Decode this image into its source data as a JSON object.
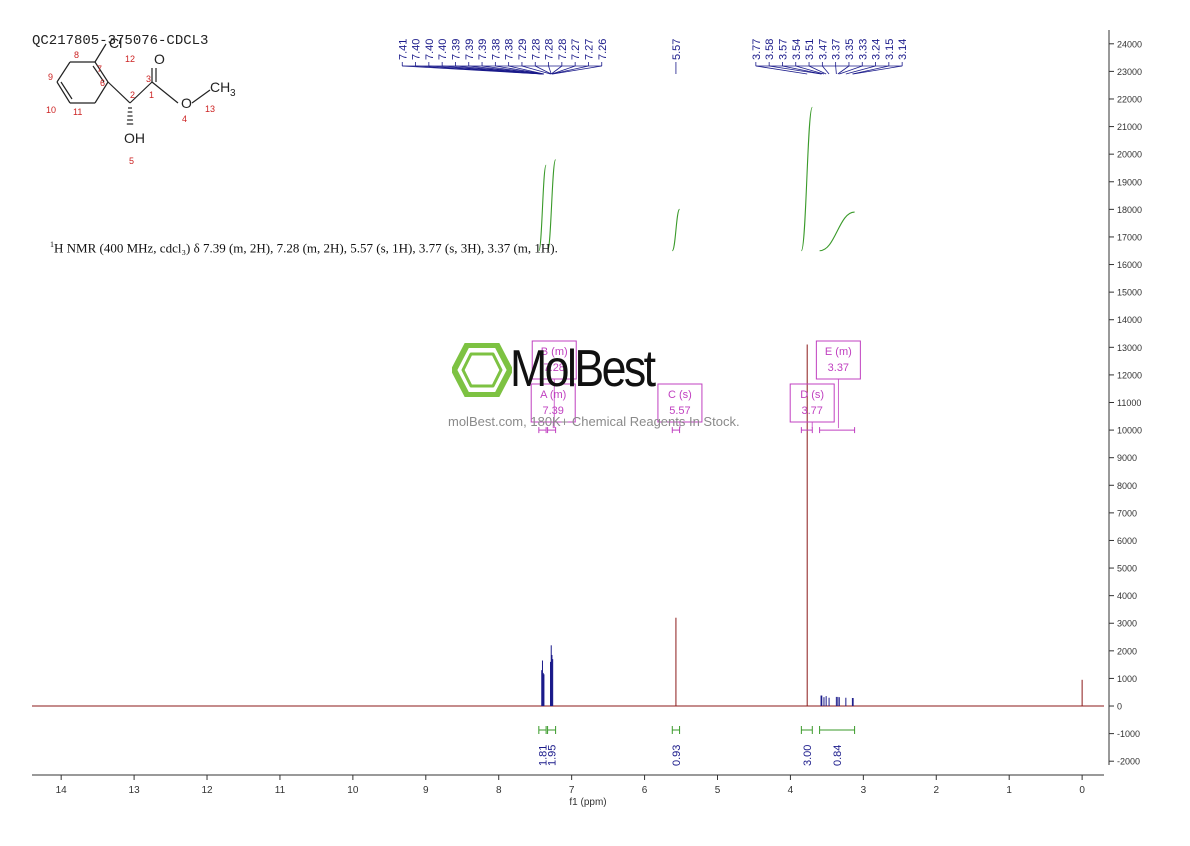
{
  "sample_id": "QC217805-375076-CDCL3",
  "nmr_text": "H NMR (400 MHz, cdcl₃) δ 7.39 (m, 2H), 7.28 (m, 2H), 5.57 (s, 1H), 3.77 (s, 3H), 3.37 (m, 1H).",
  "nmr_superscript": "1",
  "watermark": {
    "logo": "MolBest",
    "tagline": "molBest.com, 180K+ Chemical Reagents In Stock.",
    "colors": {
      "logo_green": "#7dc242",
      "logo_text": "#111111"
    }
  },
  "molecule": {
    "atoms": {
      "cl": "Cl",
      "o_carbonyl": "O",
      "o_ester": "O",
      "ch3": "CH",
      "ch3_sub": "3",
      "oh": "OH"
    },
    "numbers": [
      "1",
      "2",
      "3",
      "4",
      "5",
      "6",
      "7",
      "8",
      "9",
      "10",
      "11",
      "12",
      "13"
    ]
  },
  "chart_data": {
    "type": "line",
    "xlabel": "f1 (ppm)",
    "xlim": [
      14.4,
      -0.3
    ],
    "ylim": [
      -2500,
      24500
    ],
    "x_ticks": [
      14,
      13,
      12,
      11,
      10,
      9,
      8,
      7,
      6,
      5,
      4,
      3,
      2,
      1,
      0
    ],
    "y_ticks": [
      24000,
      23000,
      22000,
      21000,
      20000,
      19000,
      18000,
      17000,
      16000,
      15000,
      14000,
      13000,
      12000,
      11000,
      10000,
      9000,
      8000,
      7000,
      6000,
      5000,
      4000,
      3000,
      2000,
      1000,
      0,
      -1000,
      -2000
    ],
    "peaks": [
      {
        "ppm": 7.41,
        "height": 1300
      },
      {
        "ppm": 7.4,
        "height": 1650
      },
      {
        "ppm": 7.39,
        "height": 1200
      },
      {
        "ppm": 7.38,
        "height": 1150
      },
      {
        "ppm": 7.29,
        "height": 1600
      },
      {
        "ppm": 7.28,
        "height": 2200
      },
      {
        "ppm": 7.27,
        "height": 1850
      },
      {
        "ppm": 7.26,
        "height": 1700
      },
      {
        "ppm": 5.57,
        "height": 3200
      },
      {
        "ppm": 3.77,
        "height": 13100
      },
      {
        "ppm": 3.58,
        "height": 380
      },
      {
        "ppm": 3.57,
        "height": 380
      },
      {
        "ppm": 3.54,
        "height": 320
      },
      {
        "ppm": 3.51,
        "height": 360
      },
      {
        "ppm": 3.47,
        "height": 300
      },
      {
        "ppm": 3.37,
        "height": 330
      },
      {
        "ppm": 3.35,
        "height": 330
      },
      {
        "ppm": 3.33,
        "height": 320
      },
      {
        "ppm": 3.24,
        "height": 300
      },
      {
        "ppm": 3.15,
        "height": 290
      },
      {
        "ppm": 3.14,
        "height": 290
      },
      {
        "ppm": 0.0,
        "height": 950
      }
    ],
    "peak_labels_group1": [
      "7.41",
      "7.40",
      "7.40",
      "7.40",
      "7.39",
      "7.39",
      "7.39",
      "7.38",
      "7.38",
      "7.29",
      "7.28",
      "7.28",
      "7.28",
      "7.27",
      "7.27",
      "7.26"
    ],
    "peak_labels_group2": [
      "5.57"
    ],
    "peak_labels_group3": [
      "3.77",
      "3.58",
      "3.57",
      "3.54",
      "3.51",
      "3.47",
      "3.37",
      "3.35",
      "3.33",
      "3.24",
      "3.15",
      "3.14"
    ],
    "integrals": [
      {
        "from": 7.45,
        "to": 7.35,
        "value": "1.81",
        "curve_bottom": 16500,
        "curve_top": 19600
      },
      {
        "from": 7.33,
        "to": 7.22,
        "value": "1.95",
        "curve_bottom": 16500,
        "curve_top": 19800
      },
      {
        "from": 5.62,
        "to": 5.52,
        "value": "0.93",
        "curve_bottom": 16500,
        "curve_top": 18000
      },
      {
        "from": 3.85,
        "to": 3.7,
        "value": "3.00",
        "curve_bottom": 16500,
        "curve_top": 21700
      },
      {
        "from": 3.6,
        "to": 3.12,
        "value": "0.84",
        "curve_bottom": 16500,
        "curve_top": 17900
      }
    ],
    "multiplets": [
      {
        "letter": "B",
        "type": "(m)",
        "shift": "7.28"
      },
      {
        "letter": "A",
        "type": "(m)",
        "shift": "7.39"
      },
      {
        "letter": "C",
        "type": "(s)",
        "shift": "5.57"
      },
      {
        "letter": "D",
        "type": "(s)",
        "shift": "3.77"
      },
      {
        "letter": "E",
        "type": "(m)",
        "shift": "3.37"
      }
    ],
    "multiplet_ranges": [
      {
        "from": 7.45,
        "to": 7.35,
        "y": 10000
      },
      {
        "from": 7.33,
        "to": 7.22,
        "y": 10000
      },
      {
        "from": 5.62,
        "to": 5.52,
        "y": 10000
      },
      {
        "from": 3.85,
        "to": 3.7,
        "y": 10000
      },
      {
        "from": 3.6,
        "to": 3.12,
        "y": 10000
      }
    ],
    "colors": {
      "spectrum": "#8b1a1a",
      "peak_label": "#1a1a8a",
      "integral": "#3a9a2a",
      "multiplet": "#c040c0",
      "axis": "#333333"
    }
  }
}
